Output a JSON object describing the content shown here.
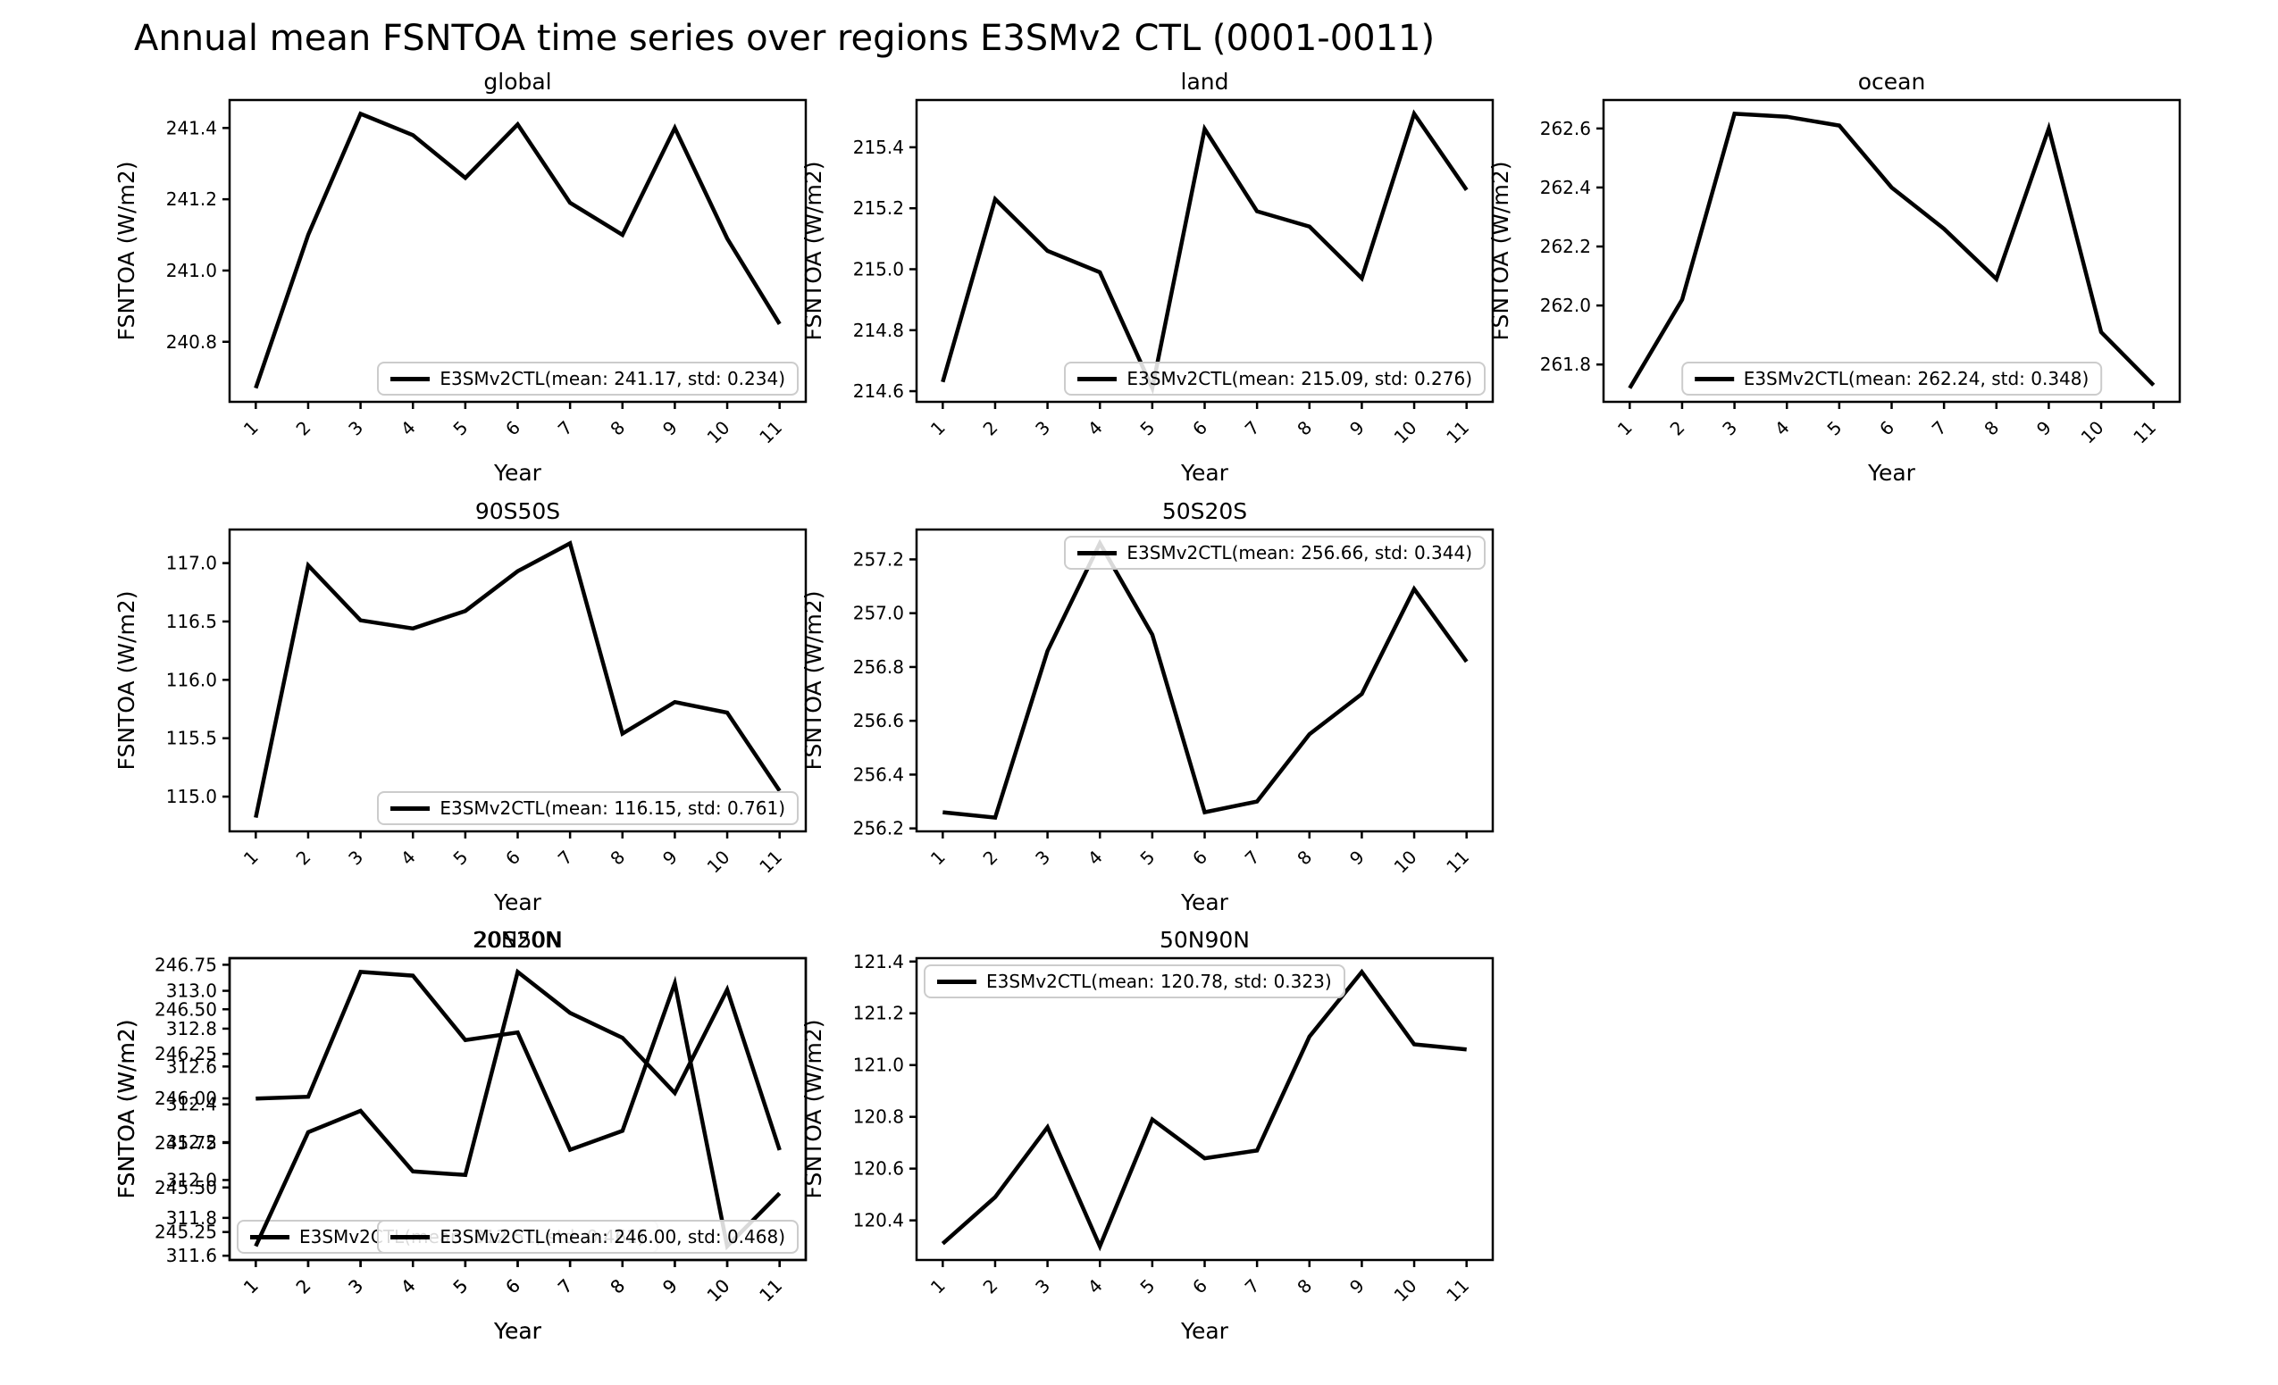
{
  "figure": {
    "title": "Annual mean FSNTOA time series over regions E3SMv2 CTL (0001-0011)",
    "background_color": "#ffffff",
    "line_color": "#000000",
    "legend_border_color": "#cccccc",
    "series_name": "E3SMv2CTL"
  },
  "chart_data": [
    {
      "type": "line",
      "title": "global",
      "xlabel": "Year",
      "ylabel": "FSNTOA (W/m2)",
      "x": [
        1,
        2,
        3,
        4,
        5,
        6,
        7,
        8,
        9,
        10,
        11
      ],
      "values": [
        240.67,
        241.1,
        241.44,
        241.38,
        241.26,
        241.41,
        241.19,
        241.1,
        241.4,
        241.09,
        240.85
      ],
      "mean": 241.17,
      "std": 0.234,
      "xlim": [
        0.5,
        11.5
      ],
      "ylim": [
        240.6315,
        241.4785
      ],
      "yticks": {
        "values": [
          240.8,
          241.0,
          241.2,
          241.4
        ],
        "labels": [
          "240.8",
          "241.0",
          "241.2",
          "241.4"
        ]
      },
      "legend": {
        "label": "E3SMv2CTL(mean: 241.17, std: 0.234)",
        "loc": "lower-right"
      },
      "grid_on": false,
      "row": 0,
      "col": 0
    },
    {
      "type": "line",
      "title": "land",
      "xlabel": "Year",
      "ylabel": "FSNTOA (W/m2)",
      "x": [
        1,
        2,
        3,
        4,
        5,
        6,
        7,
        8,
        9,
        10,
        11
      ],
      "values": [
        214.63,
        215.23,
        215.06,
        214.99,
        214.61,
        215.46,
        215.19,
        215.14,
        214.97,
        215.51,
        215.26
      ],
      "mean": 215.09,
      "std": 0.276,
      "xlim": [
        0.5,
        11.5
      ],
      "ylim": [
        214.565,
        215.555
      ],
      "yticks": {
        "values": [
          214.6,
          214.8,
          215.0,
          215.2,
          215.4
        ],
        "labels": [
          "214.6",
          "214.8",
          "215.0",
          "215.2",
          "215.4"
        ]
      },
      "legend": {
        "label": "E3SMv2CTL(mean: 215.09, std: 0.276)",
        "loc": "lower-right"
      },
      "grid_on": false,
      "row": 0,
      "col": 1
    },
    {
      "type": "line",
      "title": "ocean",
      "xlabel": "Year",
      "ylabel": "FSNTOA (W/m2)",
      "x": [
        1,
        2,
        3,
        4,
        5,
        6,
        7,
        8,
        9,
        10,
        11
      ],
      "values": [
        261.72,
        262.02,
        262.65,
        262.64,
        262.61,
        262.4,
        262.26,
        262.09,
        262.6,
        261.91,
        261.73
      ],
      "mean": 262.24,
      "std": 0.348,
      "xlim": [
        0.5,
        11.5
      ],
      "ylim": [
        261.6735,
        262.6965
      ],
      "yticks": {
        "values": [
          261.8,
          262.0,
          262.2,
          262.4,
          262.6
        ],
        "labels": [
          "261.8",
          "262.0",
          "262.2",
          "262.4",
          "262.6"
        ]
      },
      "legend": {
        "label": "E3SMv2CTL(mean: 262.24, std: 0.348)",
        "loc": "lower-center"
      },
      "grid_on": false,
      "row": 0,
      "col": 2
    },
    {
      "type": "line",
      "title": "90S50S",
      "xlabel": "Year",
      "ylabel": "FSNTOA (W/m2)",
      "x": [
        1,
        2,
        3,
        4,
        5,
        6,
        7,
        8,
        9,
        10,
        11
      ],
      "values": [
        114.82,
        116.98,
        116.51,
        116.44,
        116.59,
        116.93,
        117.17,
        115.54,
        115.81,
        115.72,
        115.05
      ],
      "mean": 116.15,
      "std": 0.761,
      "xlim": [
        0.5,
        11.5
      ],
      "ylim": [
        114.7025,
        117.2875
      ],
      "yticks": {
        "values": [
          115.0,
          115.5,
          116.0,
          116.5,
          117.0
        ],
        "labels": [
          "115.0",
          "115.5",
          "116.0",
          "116.5",
          "117.0"
        ]
      },
      "legend": {
        "label": "E3SMv2CTL(mean: 116.15, std: 0.761)",
        "loc": "lower-right"
      },
      "grid_on": false,
      "row": 1,
      "col": 0
    },
    {
      "type": "line",
      "title": "50S20S",
      "xlabel": "Year",
      "ylabel": "FSNTOA (W/m2)",
      "x": [
        1,
        2,
        3,
        4,
        5,
        6,
        7,
        8,
        9,
        10,
        11
      ],
      "values": [
        256.26,
        256.24,
        256.86,
        257.26,
        256.92,
        256.26,
        256.3,
        256.55,
        256.7,
        257.09,
        256.82
      ],
      "mean": 256.66,
      "std": 0.344,
      "xlim": [
        0.5,
        11.5
      ],
      "ylim": [
        256.189,
        257.311
      ],
      "yticks": {
        "values": [
          256.2,
          256.4,
          256.6,
          256.8,
          257.0,
          257.2
        ],
        "labels": [
          "256.2",
          "256.4",
          "256.6",
          "256.8",
          "257.0",
          "257.2"
        ]
      },
      "legend": {
        "label": "E3SMv2CTL(mean: 256.66, std: 0.344)",
        "loc": "upper-right"
      },
      "grid_on": false,
      "row": 1,
      "col": 1
    },
    {
      "type": "line",
      "title": "20S20N",
      "xlabel": "Year",
      "ylabel": "FSNTOA (W/m2)",
      "x": [
        1,
        2,
        3,
        4,
        5,
        6,
        7,
        8,
        9,
        10,
        11
      ],
      "values": [
        312.43,
        312.44,
        313.1,
        313.08,
        312.74,
        312.78,
        312.16,
        312.26,
        313.04,
        311.65,
        311.93
      ],
      "mean": 312.51,
      "std": 0.461,
      "xlim": [
        0.5,
        11.5
      ],
      "ylim": [
        311.5775,
        313.1725
      ],
      "yticks": {
        "values": [
          311.6,
          311.8,
          312.0,
          312.2,
          312.4,
          312.6,
          312.8,
          313.0
        ],
        "labels": [
          "311.6",
          "311.8",
          "312.0",
          "312.2",
          "312.4",
          "312.6",
          "312.8",
          "313.0"
        ]
      },
      "legend": {
        "label": "E3SMv2CTL(mean: 312.51, std: 0.461)",
        "loc": "lower-left"
      },
      "grid_on": false,
      "row": 2,
      "col": 0
    },
    {
      "type": "line",
      "title": "20N50N",
      "xlabel": "Year",
      "ylabel": "FSNTOA (W/m2)",
      "x": [
        1,
        2,
        3,
        4,
        5,
        6,
        7,
        8,
        9,
        10,
        11
      ],
      "values": [
        245.17,
        245.81,
        245.93,
        245.59,
        245.57,
        246.71,
        246.48,
        246.34,
        246.03,
        246.61,
        245.71
      ],
      "mean": 246.0,
      "std": 0.468,
      "xlim": [
        0.5,
        11.5
      ],
      "ylim": [
        245.093,
        246.787
      ],
      "yticks": {
        "values": [
          245.25,
          245.5,
          245.75,
          246.0,
          246.25,
          246.5,
          246.75
        ],
        "labels": [
          "245.25",
          "245.50",
          "245.75",
          "246.00",
          "246.25",
          "246.50",
          "246.75"
        ]
      },
      "legend": {
        "label": "E3SMv2CTL(mean: 246.00, std: 0.468)",
        "loc": "lower-right"
      },
      "grid_on": false,
      "row": 3,
      "col": 0
    },
    {
      "type": "line",
      "title": "50N90N",
      "xlabel": "Year",
      "ylabel": "FSNTOA (W/m2)",
      "x": [
        1,
        2,
        3,
        4,
        5,
        6,
        7,
        8,
        9,
        10,
        11
      ],
      "values": [
        120.31,
        120.49,
        120.76,
        120.3,
        120.79,
        120.64,
        120.67,
        121.11,
        121.36,
        121.08,
        121.06
      ],
      "mean": 120.78,
      "std": 0.323,
      "xlim": [
        0.5,
        11.5
      ],
      "ylim": [
        120.247,
        121.413
      ],
      "yticks": {
        "values": [
          120.4,
          120.6,
          120.8,
          121.0,
          121.2,
          121.4
        ],
        "labels": [
          "120.4",
          "120.6",
          "120.8",
          "121.0",
          "121.2",
          "121.4"
        ]
      },
      "legend": {
        "label": "E3SMv2CTL(mean: 120.78, std: 0.323)",
        "loc": "upper-left"
      },
      "grid_on": false,
      "row": 3,
      "col": 1
    }
  ]
}
